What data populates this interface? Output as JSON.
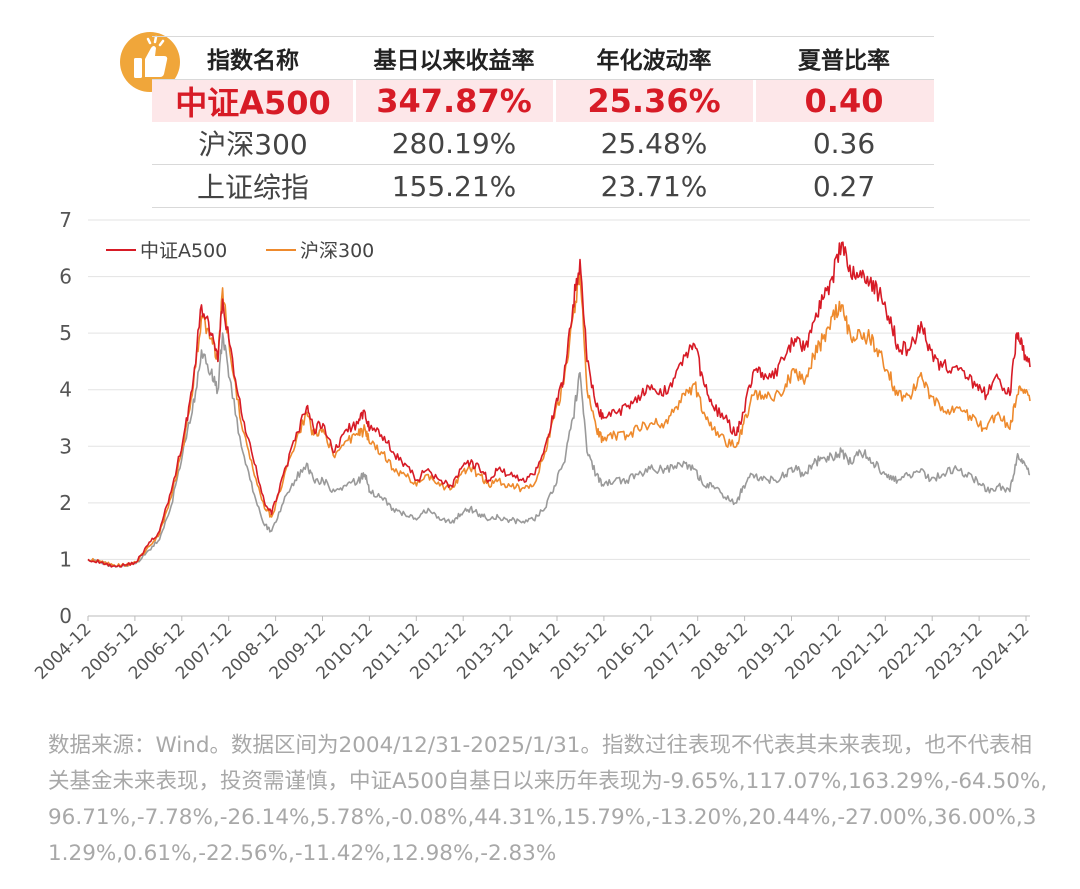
{
  "colors": {
    "csi_a500": "#d71b26",
    "csi_300": "#ee8a2d",
    "sse": "#9a9a9a",
    "highlight_bg": "#fde7e9",
    "badge": "#f0a63a"
  },
  "badge": {
    "icon": "thumbs-up-icon"
  },
  "table": {
    "headers": [
      "指数名称",
      "基日以来收益率",
      "年化波动率",
      "夏普比率"
    ],
    "rows": [
      {
        "name": "中证A500",
        "return": "347.87%",
        "volatility": "25.36%",
        "sharpe": "0.40"
      },
      {
        "name": "沪深300",
        "return": "280.19%",
        "volatility": "25.48%",
        "sharpe": "0.36"
      },
      {
        "name": "上证综指",
        "return": "155.21%",
        "volatility": "23.71%",
        "sharpe": "0.27"
      }
    ]
  },
  "chart_data": {
    "type": "line",
    "grid": "horizontal",
    "legend_position": "top-left",
    "ylim": [
      0,
      7
    ],
    "y_ticks": [
      "0",
      "1",
      "2",
      "3",
      "4",
      "5",
      "6",
      "7"
    ],
    "x_tick_labels": [
      "2004-12",
      "2005-12",
      "2006-12",
      "2007-12",
      "2008-12",
      "2009-12",
      "2010-12",
      "2011-12",
      "2012-12",
      "2013-12",
      "2014-12",
      "2015-12",
      "2016-12",
      "2017-12",
      "2018-12",
      "2019-12",
      "2020-12",
      "2021-12",
      "2022-12",
      "2023-12",
      "2024-12"
    ],
    "x": [
      2004.92,
      2005.2,
      2005.45,
      2005.7,
      2005.95,
      2006.2,
      2006.45,
      2006.7,
      2006.95,
      2007.15,
      2007.35,
      2007.55,
      2007.7,
      2007.8,
      2007.95,
      2008.2,
      2008.45,
      2008.7,
      2008.85,
      2009.1,
      2009.35,
      2009.6,
      2009.75,
      2009.95,
      2010.2,
      2010.45,
      2010.7,
      2010.85,
      2010.95,
      2011.2,
      2011.45,
      2011.7,
      2011.95,
      2012.2,
      2012.45,
      2012.7,
      2012.9,
      2013.1,
      2013.3,
      2013.5,
      2013.7,
      2013.95,
      2014.2,
      2014.45,
      2014.7,
      2014.9,
      2015.1,
      2015.3,
      2015.45,
      2015.6,
      2015.8,
      2015.95,
      2016.2,
      2016.45,
      2016.7,
      2016.95,
      2017.2,
      2017.45,
      2017.7,
      2017.9,
      2018.1,
      2018.3,
      2018.55,
      2018.8,
      2018.95,
      2019.15,
      2019.35,
      2019.6,
      2019.85,
      2020.05,
      2020.25,
      2020.45,
      2020.65,
      2020.85,
      2021.05,
      2021.25,
      2021.45,
      2021.65,
      2021.85,
      2022.05,
      2022.25,
      2022.5,
      2022.75,
      2022.95,
      2023.2,
      2023.45,
      2023.7,
      2023.95,
      2024.15,
      2024.4,
      2024.65,
      2024.8,
      2024.92,
      2025.08
    ],
    "series": [
      {
        "name": "中证A500",
        "values": [
          1.0,
          0.95,
          0.88,
          0.9,
          0.95,
          1.25,
          1.5,
          2.2,
          3.1,
          4.0,
          5.5,
          5.0,
          4.5,
          5.6,
          4.8,
          3.6,
          2.8,
          2.0,
          1.8,
          2.5,
          3.1,
          3.7,
          3.3,
          3.4,
          2.9,
          3.3,
          3.4,
          3.6,
          3.3,
          3.2,
          2.9,
          2.7,
          2.4,
          2.6,
          2.4,
          2.3,
          2.6,
          2.7,
          2.6,
          2.4,
          2.6,
          2.5,
          2.4,
          2.5,
          3.0,
          3.6,
          4.2,
          5.5,
          6.3,
          4.5,
          3.7,
          3.5,
          3.6,
          3.7,
          3.9,
          4.0,
          3.9,
          4.2,
          4.6,
          4.8,
          4.1,
          3.7,
          3.5,
          3.2,
          3.6,
          4.3,
          4.3,
          4.2,
          4.6,
          4.9,
          4.7,
          5.2,
          5.6,
          6.0,
          6.6,
          6.0,
          6.1,
          5.9,
          5.7,
          5.3,
          4.8,
          4.7,
          5.2,
          4.7,
          4.4,
          4.4,
          4.2,
          4.1,
          3.9,
          4.2,
          3.9,
          5.0,
          4.7,
          4.4
        ]
      },
      {
        "name": "沪深300",
        "values": [
          1.0,
          0.96,
          0.9,
          0.9,
          0.95,
          1.22,
          1.45,
          2.1,
          3.0,
          3.9,
          5.3,
          4.9,
          4.5,
          5.8,
          4.7,
          3.4,
          2.6,
          1.9,
          1.75,
          2.4,
          3.0,
          3.6,
          3.2,
          3.3,
          2.8,
          3.1,
          3.2,
          3.3,
          3.05,
          2.9,
          2.6,
          2.5,
          2.3,
          2.5,
          2.3,
          2.25,
          2.5,
          2.6,
          2.5,
          2.3,
          2.4,
          2.3,
          2.25,
          2.3,
          2.9,
          3.5,
          4.1,
          5.3,
          6.1,
          4.0,
          3.3,
          3.1,
          3.2,
          3.2,
          3.3,
          3.4,
          3.4,
          3.6,
          3.9,
          4.1,
          3.6,
          3.3,
          3.1,
          3.0,
          3.4,
          3.9,
          3.9,
          3.8,
          4.1,
          4.3,
          4.1,
          4.6,
          4.9,
          5.3,
          5.5,
          4.9,
          5.0,
          4.9,
          4.7,
          4.3,
          3.9,
          3.9,
          4.3,
          3.9,
          3.7,
          3.6,
          3.6,
          3.4,
          3.3,
          3.6,
          3.3,
          3.9,
          4.0,
          3.8
        ]
      },
      {
        "values": [
          1.0,
          0.95,
          0.88,
          0.88,
          0.93,
          1.15,
          1.35,
          1.95,
          2.9,
          3.6,
          4.7,
          4.3,
          4.0,
          5.0,
          4.2,
          3.0,
          2.2,
          1.6,
          1.5,
          2.0,
          2.4,
          2.7,
          2.4,
          2.4,
          2.2,
          2.3,
          2.4,
          2.5,
          2.2,
          2.1,
          1.9,
          1.8,
          1.7,
          1.9,
          1.7,
          1.65,
          1.8,
          1.9,
          1.8,
          1.7,
          1.75,
          1.7,
          1.65,
          1.7,
          1.9,
          2.3,
          2.7,
          3.5,
          4.3,
          2.9,
          2.5,
          2.3,
          2.4,
          2.4,
          2.5,
          2.6,
          2.6,
          2.6,
          2.7,
          2.6,
          2.3,
          2.3,
          2.1,
          2.0,
          2.3,
          2.5,
          2.4,
          2.4,
          2.5,
          2.6,
          2.5,
          2.7,
          2.8,
          2.8,
          2.9,
          2.7,
          2.9,
          2.8,
          2.6,
          2.5,
          2.4,
          2.5,
          2.6,
          2.4,
          2.5,
          2.6,
          2.5,
          2.4,
          2.2,
          2.3,
          2.2,
          2.8,
          2.7,
          2.5
        ]
      }
    ]
  },
  "footnote": "数据来源：Wind。数据区间为2004/12/31-2025/1/31。指数过往表现不代表其未来表现，也不代表相关基金未来表现，投资需谨慎，中证A500自基日以来历年表现为-9.65%,117.07%,163.29%,-64.50%,96.71%,-7.78%,-26.14%,5.78%,-0.08%,44.31%,15.79%,-13.20%,20.44%,-27.00%,36.00%,31.29%,0.61%,-22.56%,-11.42%,12.98%,-2.83%"
}
